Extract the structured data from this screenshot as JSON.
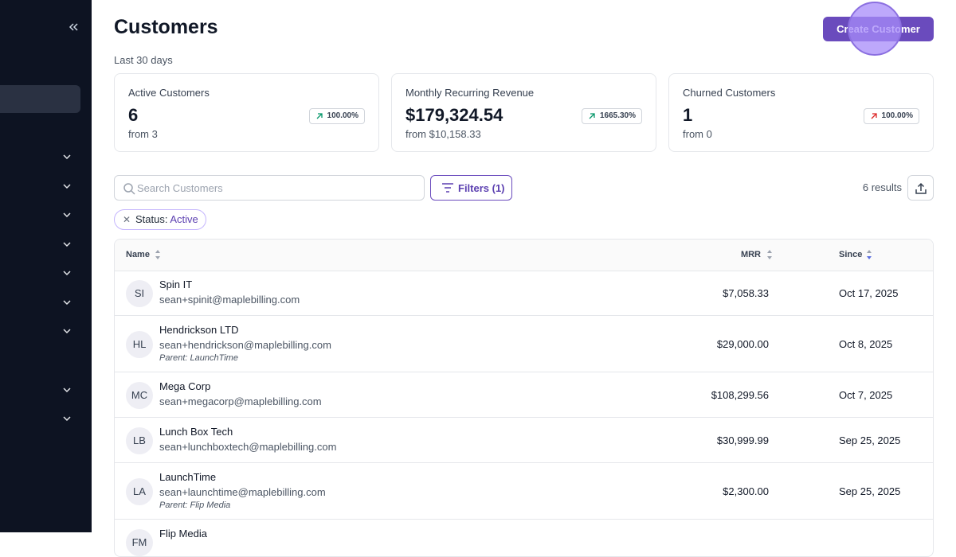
{
  "header": {
    "title": "Customers",
    "subtitle": "Last 30 days",
    "create_button": "Create Customer"
  },
  "stats": [
    {
      "label": "Active Customers",
      "value": "6",
      "change": "100.00%",
      "from": "from 3"
    },
    {
      "label": "Monthly Recurring Revenue",
      "value": "$179,324.54",
      "change": "1665.30%",
      "from": "from $10,158.33"
    },
    {
      "label": "Churned Customers",
      "value": "1",
      "change": "100.00%",
      "from": "from 0"
    }
  ],
  "toolbar": {
    "search_placeholder": "Search Customers",
    "filters": "Filters (1)",
    "results": "6 results"
  },
  "filter_chip": {
    "key": "Status:",
    "value": "Active"
  },
  "table": {
    "columns": [
      "Name",
      "MRR",
      "Since"
    ],
    "rows": [
      {
        "initials": "SI",
        "name": "Spin IT",
        "email": "sean+spinit@maplebilling.com",
        "mrr": "$7,058.33",
        "since": "Oct 17, 2025"
      },
      {
        "initials": "HL",
        "name": "Hendrickson LTD",
        "email": "sean+hendrickson@maplebilling.com",
        "parent": "Parent: LaunchTime",
        "mrr": "$29,000.00",
        "since": "Oct 8, 2025"
      },
      {
        "initials": "MC",
        "name": "Mega Corp",
        "email": "sean+megacorp@maplebilling.com",
        "mrr": "$108,299.56",
        "since": "Oct 7, 2025"
      },
      {
        "initials": "LB",
        "name": "Lunch Box Tech",
        "email": "sean+lunchboxtech@maplebilling.com",
        "mrr": "$30,999.99",
        "since": "Sep 25, 2025"
      },
      {
        "initials": "LA",
        "name": "LaunchTime",
        "email": "sean+launchtime@maplebilling.com",
        "parent": "Parent: Flip Media",
        "mrr": "$2,300.00",
        "since": "Sep 25, 2025"
      },
      {
        "initials": "FM",
        "name": "Flip Media"
      }
    ]
  }
}
